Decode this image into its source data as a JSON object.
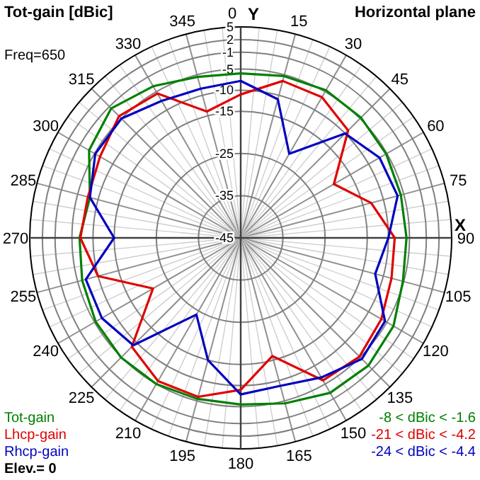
{
  "chart_data": {
    "type": "radar",
    "title": "Tot-gain [dBic]",
    "subtitle": "Horizontal plane",
    "xlabel": "X",
    "ylabel": "Y",
    "categories": [
      "0",
      "15",
      "30",
      "45",
      "60",
      "75",
      "90",
      "105",
      "120",
      "135",
      "150",
      "165",
      "180",
      "195",
      "210",
      "225",
      "240",
      "255",
      "270",
      "285",
      "300",
      "315",
      "330",
      "345"
    ],
    "ylim": [
      -45,
      5
    ],
    "yticks": [
      5,
      2,
      -1,
      -5,
      -10,
      -15,
      -25,
      -35,
      -45
    ],
    "grid": true,
    "legend": "bottom left",
    "series": [
      {
        "name": "Tot-gain",
        "color": "#008000",
        "values": [
          -6,
          -5.3,
          -4.6,
          -4.7,
          -5.2,
          -5.7,
          -5.7,
          -5.2,
          -3.2,
          -2.2,
          -2.6,
          -4.4,
          -5.5,
          -5.5,
          -5,
          -4.9,
          -5.3,
          -6.1,
          -6.8,
          -8,
          -3.5,
          -1.6,
          -3.5,
          -5.5
        ]
      },
      {
        "name": "Lhcp-gain",
        "color": "#e00000",
        "values": [
          -11,
          -6.5,
          -6.5,
          -9,
          -19.5,
          -13,
          -8.5,
          -8,
          -6.5,
          -5.2,
          -6,
          -16,
          -9,
          -6,
          -5.8,
          -8.5,
          -21,
          -10,
          -7,
          -7.5,
          -6.5,
          -4.2,
          -5.5,
          -14
        ]
      },
      {
        "name": "Rhcp-gain",
        "color": "#0000c0",
        "values": [
          -7.8,
          -11,
          -22,
          -10,
          -7,
          -6.5,
          -10,
          -12,
          -5.5,
          -4.4,
          -6.8,
          -8.7,
          -7.9,
          -15,
          -24,
          -9,
          -7,
          -7,
          -15,
          -8,
          -5.2,
          -5,
          -7.5,
          -8.4
        ]
      }
    ],
    "annotations": [
      "Freq=650",
      "Elev.= 0",
      "-8 < dBic < -1.6",
      "-21 < dBic < -4.2",
      "-24 < dBic < -4.4"
    ]
  }
}
